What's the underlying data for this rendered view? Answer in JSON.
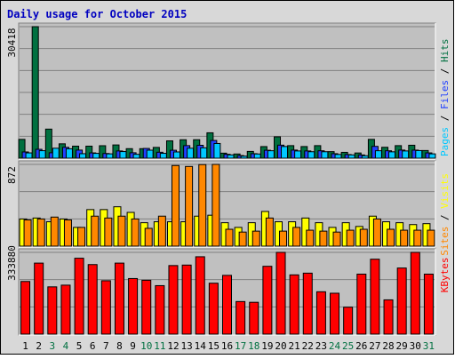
{
  "chart_data": {
    "type": "bar",
    "title": "Daily usage for October 2015",
    "days": [
      "1",
      "2",
      "3",
      "4",
      "5",
      "6",
      "7",
      "8",
      "9",
      "10",
      "11",
      "12",
      "13",
      "14",
      "15",
      "16",
      "17",
      "18",
      "19",
      "20",
      "21",
      "22",
      "23",
      "24",
      "25",
      "26",
      "27",
      "28",
      "29",
      "30",
      "31"
    ],
    "weekend_days": [
      "3",
      "4",
      "10",
      "11",
      "17",
      "18",
      "24",
      "25",
      "31"
    ],
    "colors": {
      "hits": "#007040",
      "files": "#2040ff",
      "pages": "#00c8ff",
      "visits": "#ffff00",
      "sites": "#ff8800",
      "kbytes": "#ff0000",
      "title": "#0000c0",
      "weekday_label": "#000000",
      "weekend_label": "#007040",
      "panel_bg": "#c0c0c0",
      "frame_bg": "#d8d8d8"
    },
    "panels": [
      {
        "id": "hits",
        "max_label": "30418",
        "ymax": 30418,
        "legend": [
          {
            "text": "Pages",
            "color": "#00c8ff"
          },
          {
            "text": " / ",
            "color": "#000000"
          },
          {
            "text": "Files",
            "color": "#2040ff"
          },
          {
            "text": " / ",
            "color": "#000000"
          },
          {
            "text": "Hits",
            "color": "#007040"
          }
        ],
        "series": [
          {
            "name": "Hits",
            "color": "#007040",
            "values": [
              4350,
              30418,
              6720,
              3320,
              2780,
              2780,
              2880,
              3060,
              2200,
              2200,
              2490,
              4010,
              4260,
              4270,
              5870,
              1160,
              970,
              1560,
              2680,
              4940,
              2900,
              2690,
              2900,
              1510,
              1350,
              1200,
              4350,
              2520,
              2900,
              2990,
              1770
            ]
          },
          {
            "name": "Files",
            "color": "#2040ff",
            "values": [
              1440,
              2050,
              1250,
              2510,
              1870,
              1220,
              1080,
              1670,
              1250,
              2250,
              1370,
              1830,
              2900,
              2980,
              4100,
              900,
              600,
              1040,
              1830,
              3010,
              1870,
              1670,
              1710,
              1040,
              840,
              750,
              2730,
              1710,
              1870,
              1860,
              1220
            ]
          },
          {
            "name": "Pages",
            "color": "#00c8ff",
            "values": [
              1220,
              1730,
              2300,
              2180,
              1040,
              1110,
              1000,
              1530,
              890,
              1850,
              1120,
              1440,
              2300,
              2400,
              3400,
              760,
              470,
              970,
              1720,
              2700,
              1670,
              1490,
              1490,
              860,
              760,
              570,
              1720,
              1470,
              1670,
              1760,
              1000
            ]
          }
        ]
      },
      {
        "id": "visits",
        "max_label": "872",
        "ymax": 872,
        "legend": [
          {
            "text": "Sites",
            "color": "#ff8800"
          },
          {
            "text": " / ",
            "color": "#000000"
          },
          {
            "text": "Visits",
            "color": "#ffff00"
          }
        ],
        "series": [
          {
            "name": "Visits",
            "color": "#ffff00",
            "values": [
              290,
              300,
              260,
              290,
              200,
              390,
              390,
              420,
              360,
              250,
              260,
              260,
              260,
              320,
              330,
              250,
              200,
              250,
              370,
              260,
              260,
              300,
              250,
              200,
              250,
              210,
              320,
              260,
              250,
              230,
              240
            ]
          },
          {
            "name": "Sites",
            "color": "#ff8800",
            "values": [
              280,
              290,
              310,
              280,
              200,
              320,
              300,
              320,
              290,
              190,
              320,
              860,
              850,
              870,
              872,
              180,
              150,
              160,
              300,
              160,
              200,
              170,
              160,
              150,
              170,
              180,
              290,
              180,
              170,
              170,
              170
            ]
          }
        ]
      },
      {
        "id": "kbytes",
        "max_label": "333880",
        "ymax": 333880,
        "legend": [
          {
            "text": "KBytes",
            "color": "#ff0000"
          }
        ],
        "series": [
          {
            "name": "KBytes",
            "color": "#ff0000",
            "values": [
              215000,
              290000,
              193000,
              200000,
              310000,
              284000,
              218000,
              290000,
              227000,
              220000,
              198000,
              280000,
              282000,
              316000,
              208000,
              240000,
              133000,
              130000,
              277000,
              333880,
              242000,
              249000,
              173000,
              167000,
              110000,
              245000,
              306000,
              140000,
              270000,
              333880,
              245000
            ]
          }
        ]
      }
    ]
  }
}
